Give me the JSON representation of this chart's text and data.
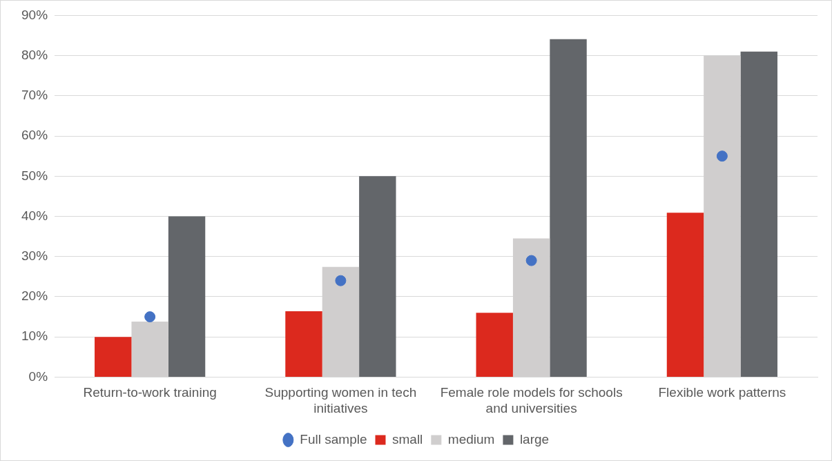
{
  "chart_data": {
    "type": "bar",
    "categories": [
      "Return-to-work training",
      "Supporting women in tech initiatives",
      "Female role models for schools and universities",
      "Flexible work patterns"
    ],
    "series": [
      {
        "name": "small",
        "color": "#dc291e",
        "values": [
          10,
          16.4,
          16,
          40.9
        ]
      },
      {
        "name": "medium",
        "color": "#d0cece",
        "values": [
          13.8,
          27.4,
          34.5,
          80
        ]
      },
      {
        "name": "large",
        "color": "#63666a",
        "values": [
          40,
          50,
          84.1,
          81
        ]
      },
      {
        "name": "Full sample",
        "type": "scatter",
        "color": "#4472c4",
        "marker": "circle",
        "x": [
          "Return-to-work training",
          "Supporting women in tech initiatives",
          "Female role models for schools and universities",
          "Flexible work patterns"
        ],
        "values": [
          15,
          24,
          29,
          55
        ]
      }
    ],
    "ylim": [
      0,
      90
    ],
    "yticks": [
      {
        "value": 0,
        "label": "0%"
      },
      {
        "value": 10,
        "label": "10%"
      },
      {
        "value": 20,
        "label": "20%"
      },
      {
        "value": 30,
        "label": "30%"
      },
      {
        "value": 40,
        "label": "40%"
      },
      {
        "value": 50,
        "label": "50%"
      },
      {
        "value": 60,
        "label": "60%"
      },
      {
        "value": 70,
        "label": "70%"
      },
      {
        "value": 80,
        "label": "80%"
      },
      {
        "value": 90,
        "label": "90%"
      }
    ],
    "grid": "y",
    "legend": "bottom"
  }
}
